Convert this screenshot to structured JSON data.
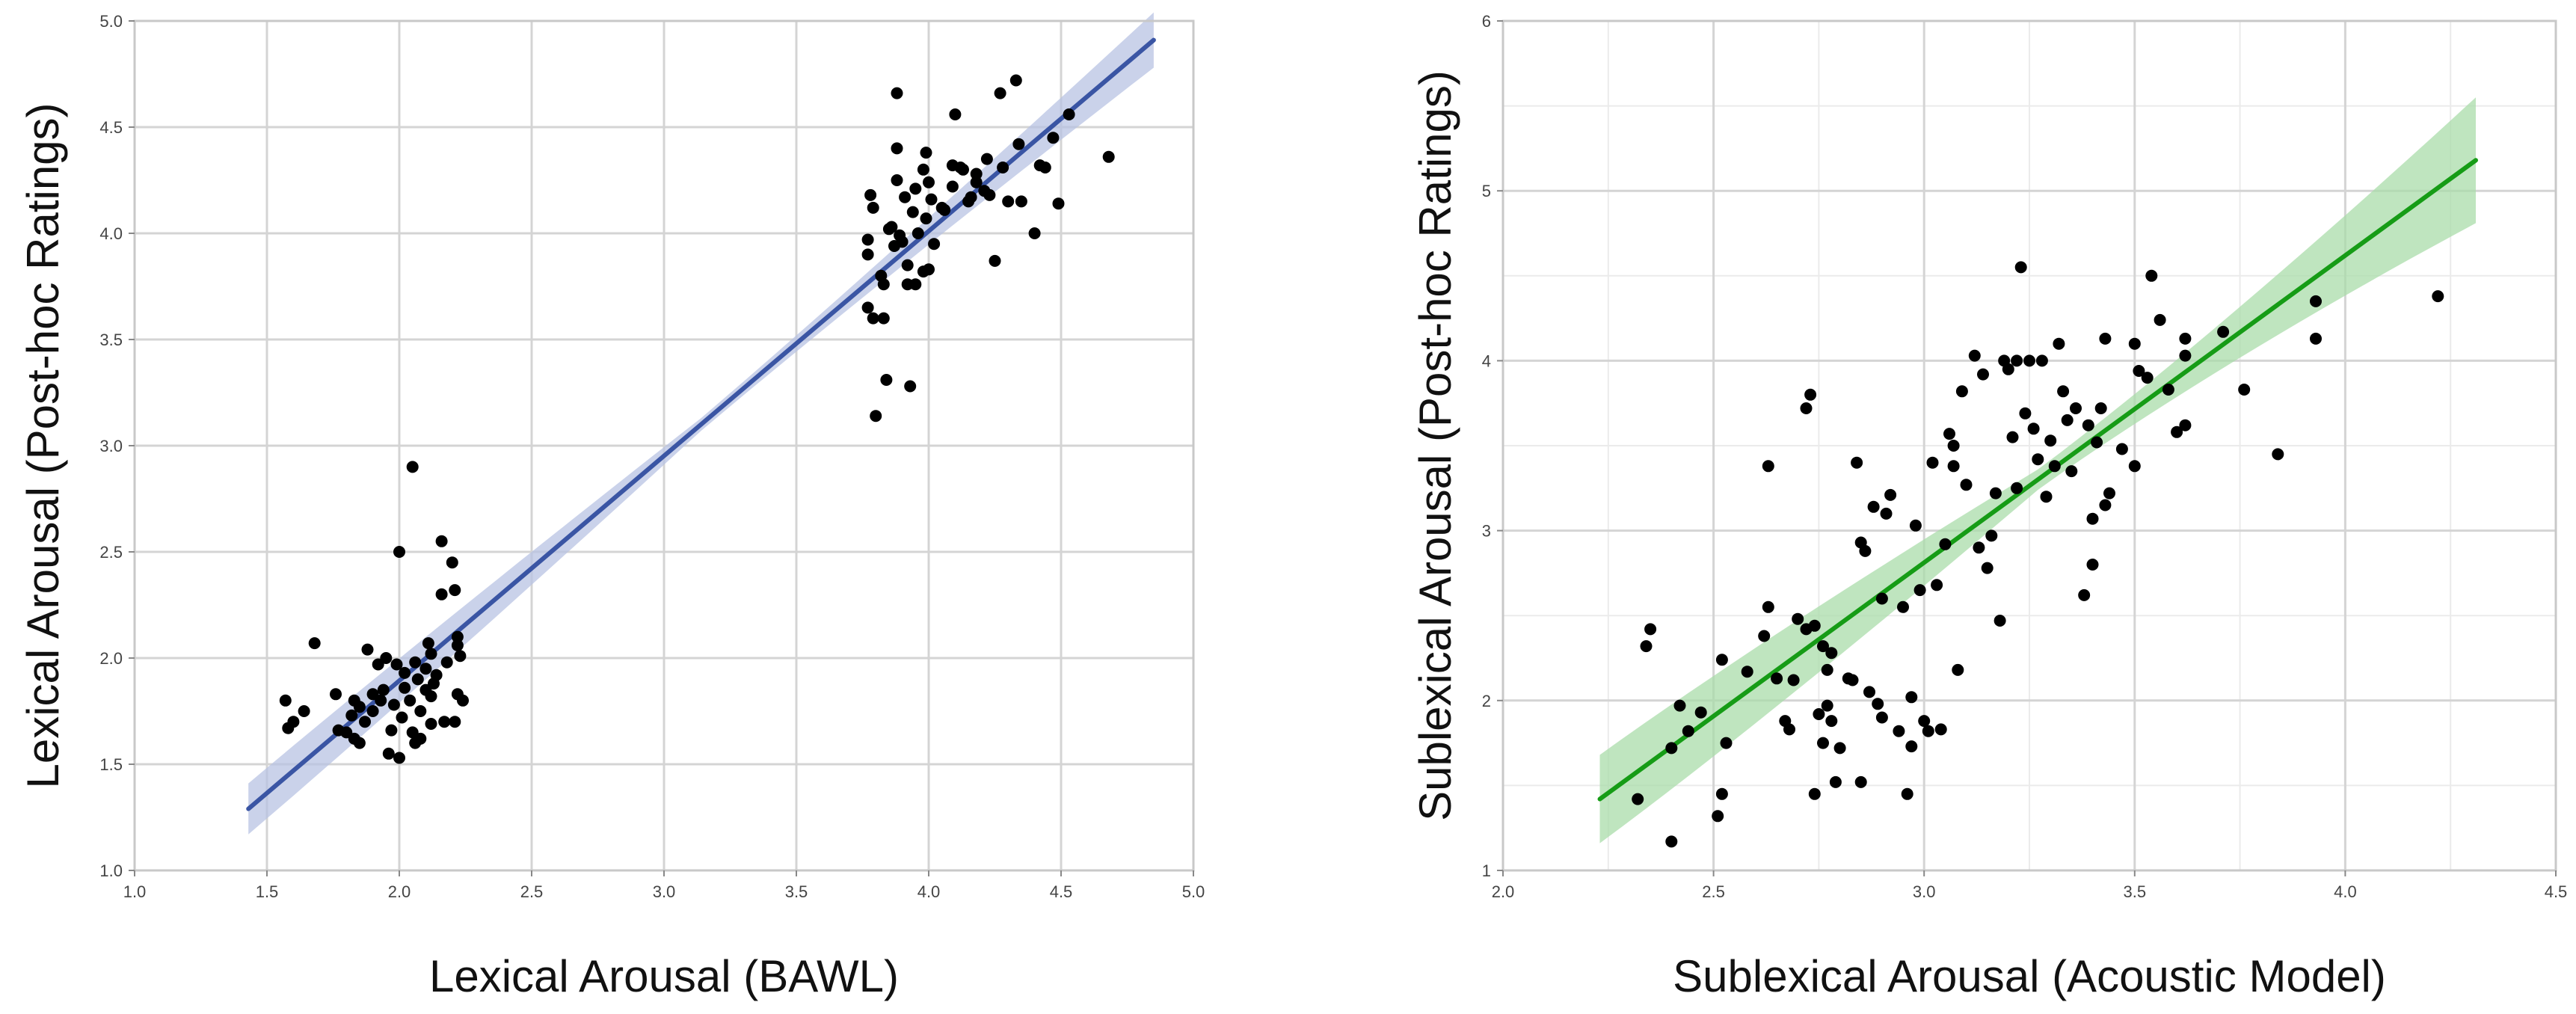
{
  "chart_data": [
    {
      "type": "scatter",
      "id": "left",
      "xlabel": "Lexical Arousal (BAWL)",
      "ylabel": "Lexical Arousal (Post-hoc Ratings)",
      "xlim": [
        1.0,
        5.0
      ],
      "ylim": [
        1.0,
        5.0
      ],
      "xticks": [
        1.0,
        1.5,
        2.0,
        2.5,
        3.0,
        3.5,
        4.0,
        4.5,
        5.0
      ],
      "yticks": [
        1.0,
        1.5,
        2.0,
        2.5,
        3.0,
        3.5,
        4.0,
        4.5,
        5.0
      ],
      "xtick_labels": [
        "1.0",
        "1.5",
        "2.0",
        "2.5",
        "3.0",
        "3.5",
        "4.0",
        "4.5",
        "5.0"
      ],
      "ytick_labels": [
        "1.0",
        "1.5",
        "2.0",
        "2.5",
        "3.0",
        "3.5",
        "4.0",
        "4.5",
        "5.0"
      ],
      "minor_grid": false,
      "line_color": "#3a55a4",
      "band_color": "#b8c3e3",
      "fit": {
        "x": [
          1.43,
          4.85
        ],
        "y": [
          1.29,
          4.91
        ],
        "ci_start": 0.12,
        "ci_mid": 0.03,
        "ci_end": 0.13
      },
      "points": [
        [
          1.57,
          1.8
        ],
        [
          1.58,
          1.67
        ],
        [
          1.6,
          1.7
        ],
        [
          1.64,
          1.75
        ],
        [
          1.68,
          2.07
        ],
        [
          1.76,
          1.83
        ],
        [
          1.77,
          1.66
        ],
        [
          1.8,
          1.65
        ],
        [
          1.82,
          1.73
        ],
        [
          1.83,
          1.62
        ],
        [
          1.83,
          1.8
        ],
        [
          1.85,
          1.6
        ],
        [
          1.85,
          1.77
        ],
        [
          1.87,
          1.7
        ],
        [
          1.88,
          2.04
        ],
        [
          1.9,
          1.83
        ],
        [
          1.9,
          1.75
        ],
        [
          1.92,
          1.97
        ],
        [
          1.93,
          1.8
        ],
        [
          1.94,
          1.85
        ],
        [
          1.95,
          2.0
        ],
        [
          1.96,
          1.55
        ],
        [
          1.97,
          1.66
        ],
        [
          1.98,
          1.78
        ],
        [
          1.99,
          1.97
        ],
        [
          2.0,
          2.5
        ],
        [
          2.0,
          1.53
        ],
        [
          2.01,
          1.72
        ],
        [
          2.02,
          1.86
        ],
        [
          2.02,
          1.93
        ],
        [
          2.04,
          1.8
        ],
        [
          2.05,
          2.9
        ],
        [
          2.05,
          1.65
        ],
        [
          2.06,
          1.6
        ],
        [
          2.06,
          1.98
        ],
        [
          2.07,
          1.9
        ],
        [
          2.08,
          1.75
        ],
        [
          2.08,
          1.62
        ],
        [
          2.1,
          1.85
        ],
        [
          2.1,
          1.95
        ],
        [
          2.11,
          2.07
        ],
        [
          2.12,
          1.69
        ],
        [
          2.12,
          2.02
        ],
        [
          2.12,
          1.82
        ],
        [
          2.13,
          1.88
        ],
        [
          2.14,
          1.92
        ],
        [
          2.16,
          2.55
        ],
        [
          2.16,
          2.3
        ],
        [
          2.17,
          1.7
        ],
        [
          2.18,
          1.98
        ],
        [
          2.2,
          2.45
        ],
        [
          2.21,
          2.32
        ],
        [
          2.21,
          1.7
        ],
        [
          2.22,
          2.1
        ],
        [
          2.22,
          2.06
        ],
        [
          2.22,
          1.83
        ],
        [
          2.23,
          2.01
        ],
        [
          2.24,
          1.8
        ],
        [
          3.77,
          3.65
        ],
        [
          3.77,
          3.9
        ],
        [
          3.77,
          3.97
        ],
        [
          3.78,
          4.18
        ],
        [
          3.79,
          3.6
        ],
        [
          3.79,
          4.12
        ],
        [
          3.8,
          3.14
        ],
        [
          3.82,
          3.8
        ],
        [
          3.83,
          3.76
        ],
        [
          3.83,
          3.6
        ],
        [
          3.84,
          3.31
        ],
        [
          3.85,
          4.02
        ],
        [
          3.86,
          4.03
        ],
        [
          3.87,
          3.94
        ],
        [
          3.88,
          4.25
        ],
        [
          3.88,
          4.4
        ],
        [
          3.88,
          4.66
        ],
        [
          3.89,
          3.99
        ],
        [
          3.9,
          3.96
        ],
        [
          3.91,
          4.17
        ],
        [
          3.92,
          3.76
        ],
        [
          3.92,
          3.85
        ],
        [
          3.93,
          3.28
        ],
        [
          3.94,
          4.1
        ],
        [
          3.95,
          3.76
        ],
        [
          3.95,
          4.21
        ],
        [
          3.96,
          4.0
        ],
        [
          3.98,
          4.3
        ],
        [
          3.98,
          3.82
        ],
        [
          3.99,
          4.38
        ],
        [
          3.99,
          4.07
        ],
        [
          4.0,
          3.83
        ],
        [
          4.0,
          4.24
        ],
        [
          4.01,
          4.16
        ],
        [
          4.02,
          3.95
        ],
        [
          4.05,
          4.12
        ],
        [
          4.06,
          4.11
        ],
        [
          4.09,
          4.32
        ],
        [
          4.09,
          4.22
        ],
        [
          4.1,
          4.56
        ],
        [
          4.12,
          4.31
        ],
        [
          4.13,
          4.3
        ],
        [
          4.15,
          4.15
        ],
        [
          4.16,
          4.17
        ],
        [
          4.18,
          4.28
        ],
        [
          4.18,
          4.24
        ],
        [
          4.21,
          4.2
        ],
        [
          4.22,
          4.35
        ],
        [
          4.23,
          4.18
        ],
        [
          4.25,
          3.87
        ],
        [
          4.27,
          4.66
        ],
        [
          4.28,
          4.31
        ],
        [
          4.3,
          4.15
        ],
        [
          4.33,
          4.72
        ],
        [
          4.34,
          4.42
        ],
        [
          4.35,
          4.15
        ],
        [
          4.4,
          4.0
        ],
        [
          4.42,
          4.32
        ],
        [
          4.44,
          4.31
        ],
        [
          4.47,
          4.45
        ],
        [
          4.49,
          4.14
        ],
        [
          4.53,
          4.56
        ],
        [
          4.68,
          4.36
        ]
      ]
    },
    {
      "type": "scatter",
      "id": "right",
      "xlabel": "Sublexical Arousal (Acoustic Model)",
      "ylabel": "Sublexical Arousal (Post-hoc Ratings)",
      "xlim": [
        2.0,
        4.5
      ],
      "ylim": [
        1,
        6
      ],
      "xticks": [
        2.0,
        2.5,
        3.0,
        3.5,
        4.0,
        4.5
      ],
      "yticks": [
        1,
        2,
        3,
        4,
        5,
        6
      ],
      "xtick_labels": [
        "2.0",
        "2.5",
        "3.0",
        "3.5",
        "4.0",
        "4.5"
      ],
      "ytick_labels": [
        "1",
        "2",
        "3",
        "4",
        "5",
        "6"
      ],
      "minor_grid": true,
      "line_color": "#169c16",
      "band_color": "#a9dca9",
      "fit": {
        "x": [
          2.23,
          4.31
        ],
        "y": [
          1.42,
          5.18
        ],
        "ci_start": 0.26,
        "ci_mid": 0.06,
        "ci_end": 0.37
      },
      "points": [
        [
          2.32,
          1.42
        ],
        [
          2.34,
          2.32
        ],
        [
          2.35,
          2.42
        ],
        [
          2.4,
          1.17
        ],
        [
          2.4,
          1.72
        ],
        [
          2.42,
          1.97
        ],
        [
          2.44,
          1.82
        ],
        [
          2.47,
          1.93
        ],
        [
          2.51,
          1.32
        ],
        [
          2.52,
          2.24
        ],
        [
          2.52,
          1.45
        ],
        [
          2.53,
          1.75
        ],
        [
          2.58,
          2.17
        ],
        [
          2.62,
          2.38
        ],
        [
          2.63,
          2.55
        ],
        [
          2.63,
          3.38
        ],
        [
          2.65,
          2.13
        ],
        [
          2.67,
          1.88
        ],
        [
          2.68,
          1.83
        ],
        [
          2.69,
          2.12
        ],
        [
          2.7,
          2.48
        ],
        [
          2.72,
          3.72
        ],
        [
          2.72,
          2.42
        ],
        [
          2.73,
          3.8
        ],
        [
          2.74,
          2.44
        ],
        [
          2.74,
          1.45
        ],
        [
          2.75,
          1.92
        ],
        [
          2.76,
          1.75
        ],
        [
          2.76,
          2.32
        ],
        [
          2.77,
          1.97
        ],
        [
          2.77,
          2.18
        ],
        [
          2.78,
          2.28
        ],
        [
          2.78,
          1.88
        ],
        [
          2.79,
          1.52
        ],
        [
          2.8,
          1.72
        ],
        [
          2.82,
          2.13
        ],
        [
          2.83,
          2.12
        ],
        [
          2.84,
          3.4
        ],
        [
          2.85,
          1.52
        ],
        [
          2.85,
          2.93
        ],
        [
          2.86,
          2.88
        ],
        [
          2.87,
          2.05
        ],
        [
          2.88,
          3.14
        ],
        [
          2.89,
          1.98
        ],
        [
          2.9,
          2.6
        ],
        [
          2.9,
          1.9
        ],
        [
          2.91,
          3.1
        ],
        [
          2.92,
          3.21
        ],
        [
          2.94,
          1.82
        ],
        [
          2.95,
          2.55
        ],
        [
          2.96,
          1.45
        ],
        [
          2.97,
          2.02
        ],
        [
          2.97,
          1.73
        ],
        [
          2.98,
          3.03
        ],
        [
          2.99,
          2.65
        ],
        [
          3.0,
          1.88
        ],
        [
          3.01,
          1.82
        ],
        [
          3.02,
          3.4
        ],
        [
          3.03,
          2.68
        ],
        [
          3.04,
          1.83
        ],
        [
          3.05,
          2.92
        ],
        [
          3.06,
          3.57
        ],
        [
          3.07,
          3.5
        ],
        [
          3.07,
          3.38
        ],
        [
          3.08,
          2.18
        ],
        [
          3.09,
          3.82
        ],
        [
          3.1,
          3.27
        ],
        [
          3.12,
          4.03
        ],
        [
          3.13,
          2.9
        ],
        [
          3.14,
          3.92
        ],
        [
          3.15,
          2.78
        ],
        [
          3.16,
          2.97
        ],
        [
          3.17,
          3.22
        ],
        [
          3.18,
          2.47
        ],
        [
          3.19,
          4.0
        ],
        [
          3.2,
          3.95
        ],
        [
          3.21,
          3.55
        ],
        [
          3.22,
          4.0
        ],
        [
          3.22,
          3.25
        ],
        [
          3.23,
          4.55
        ],
        [
          3.24,
          3.69
        ],
        [
          3.25,
          4.0
        ],
        [
          3.26,
          3.6
        ],
        [
          3.27,
          3.42
        ],
        [
          3.28,
          4.0
        ],
        [
          3.29,
          3.2
        ],
        [
          3.3,
          3.53
        ],
        [
          3.31,
          3.38
        ],
        [
          3.32,
          4.1
        ],
        [
          3.33,
          3.82
        ],
        [
          3.34,
          3.65
        ],
        [
          3.35,
          3.35
        ],
        [
          3.36,
          3.72
        ],
        [
          3.38,
          2.62
        ],
        [
          3.39,
          3.62
        ],
        [
          3.4,
          2.8
        ],
        [
          3.4,
          3.07
        ],
        [
          3.41,
          3.52
        ],
        [
          3.42,
          3.72
        ],
        [
          3.43,
          4.13
        ],
        [
          3.43,
          3.15
        ],
        [
          3.44,
          3.22
        ],
        [
          3.47,
          3.48
        ],
        [
          3.5,
          3.38
        ],
        [
          3.5,
          4.1
        ],
        [
          3.51,
          3.94
        ],
        [
          3.53,
          3.9
        ],
        [
          3.54,
          4.5
        ],
        [
          3.56,
          4.24
        ],
        [
          3.58,
          3.83
        ],
        [
          3.6,
          3.58
        ],
        [
          3.62,
          4.13
        ],
        [
          3.62,
          4.03
        ],
        [
          3.62,
          3.62
        ],
        [
          3.71,
          4.17
        ],
        [
          3.76,
          3.83
        ],
        [
          3.84,
          3.45
        ],
        [
          3.93,
          4.35
        ],
        [
          3.93,
          4.13
        ],
        [
          4.22,
          4.38
        ]
      ]
    }
  ]
}
